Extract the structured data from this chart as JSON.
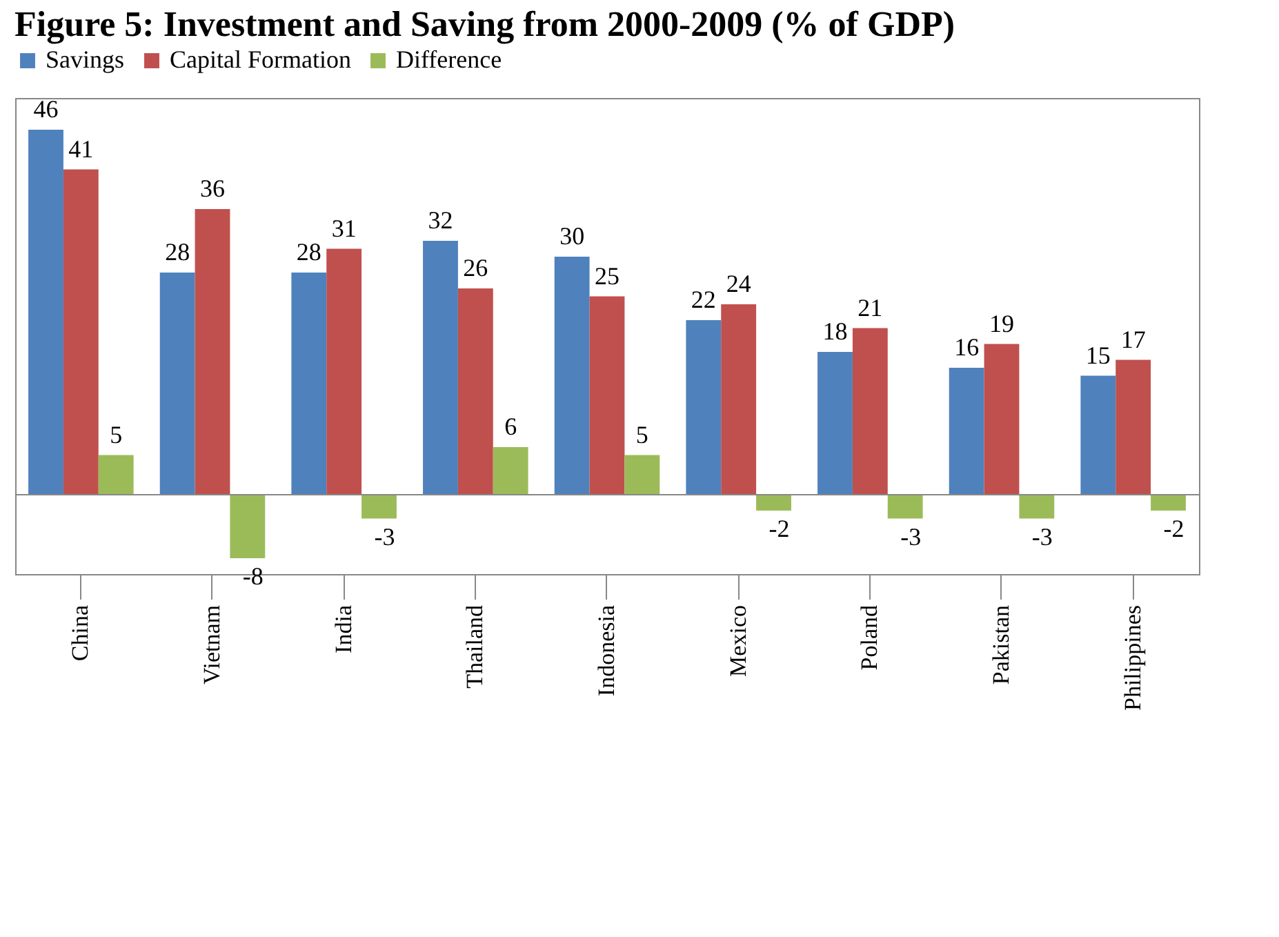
{
  "chart_data": {
    "type": "bar",
    "title": "Figure 5: Investment and Saving from 2000-2009 (% of GDP)",
    "categories": [
      "China",
      "Vietnam",
      "India",
      "Thailand",
      "Indonesia",
      "Mexico",
      "Poland",
      "Pakistan",
      "Philippines"
    ],
    "series": [
      {
        "name": "Savings",
        "color": "#4f81bd",
        "values": [
          46,
          28,
          28,
          32,
          30,
          22,
          18,
          16,
          15
        ]
      },
      {
        "name": "Capital Formation",
        "color": "#c0504d",
        "values": [
          41,
          36,
          31,
          26,
          25,
          24,
          21,
          19,
          17
        ]
      },
      {
        "name": "Difference",
        "color": "#9bbb59",
        "values": [
          5,
          -8,
          -3,
          6,
          5,
          -2,
          -3,
          -3,
          -2
        ]
      }
    ],
    "data_labels": true,
    "legend": "top",
    "grid": false
  }
}
